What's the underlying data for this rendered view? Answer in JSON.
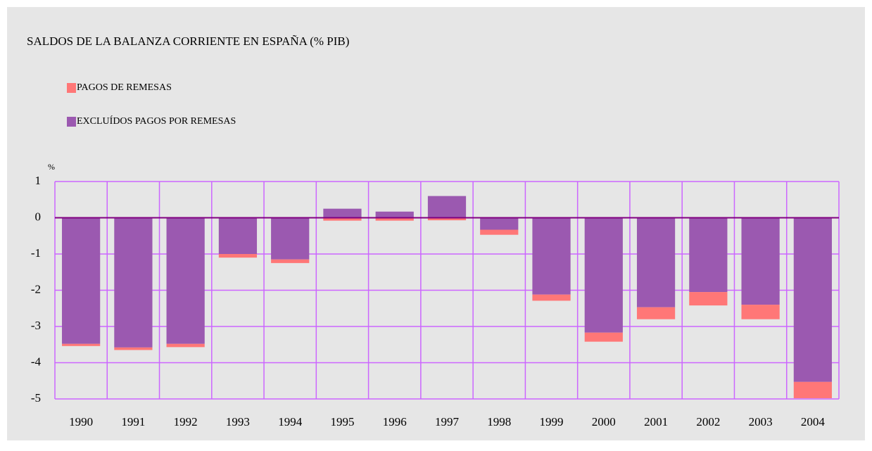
{
  "chart_data": {
    "type": "stacked_bar",
    "title": "SALDOS DE LA BALANZA CORRIENTE EN ESPAÑA (% PIB)",
    "ylabel": "%",
    "categories": [
      "1990",
      "1991",
      "1992",
      "1993",
      "1994",
      "1995",
      "1996",
      "1997",
      "1998",
      "1999",
      "2000",
      "2001",
      "2002",
      "2003",
      "2004"
    ],
    "series": [
      {
        "name": "EXCLUÍDOS PAGOS POR REMESAS",
        "color": "#9b59b0",
        "values": [
          -3.48,
          -3.58,
          -3.48,
          -1.0,
          -1.15,
          0.25,
          0.17,
          0.6,
          -0.33,
          -2.12,
          -3.17,
          -2.47,
          -2.05,
          -2.4,
          -4.53
        ]
      },
      {
        "name": "PAGOS DE REMESAS",
        "color": "#ff7777",
        "values": [
          -0.06,
          -0.07,
          -0.09,
          -0.1,
          -0.1,
          -0.08,
          -0.08,
          -0.07,
          -0.14,
          -0.17,
          -0.25,
          -0.33,
          -0.37,
          -0.4,
          -0.45
        ]
      }
    ],
    "ylim": [
      -5,
      1
    ],
    "yticks": [
      1,
      0,
      -1,
      -2,
      -3,
      -4,
      -5
    ],
    "grid": true,
    "grid_color": "#cc66ff",
    "zero_line_color": "#800080"
  }
}
